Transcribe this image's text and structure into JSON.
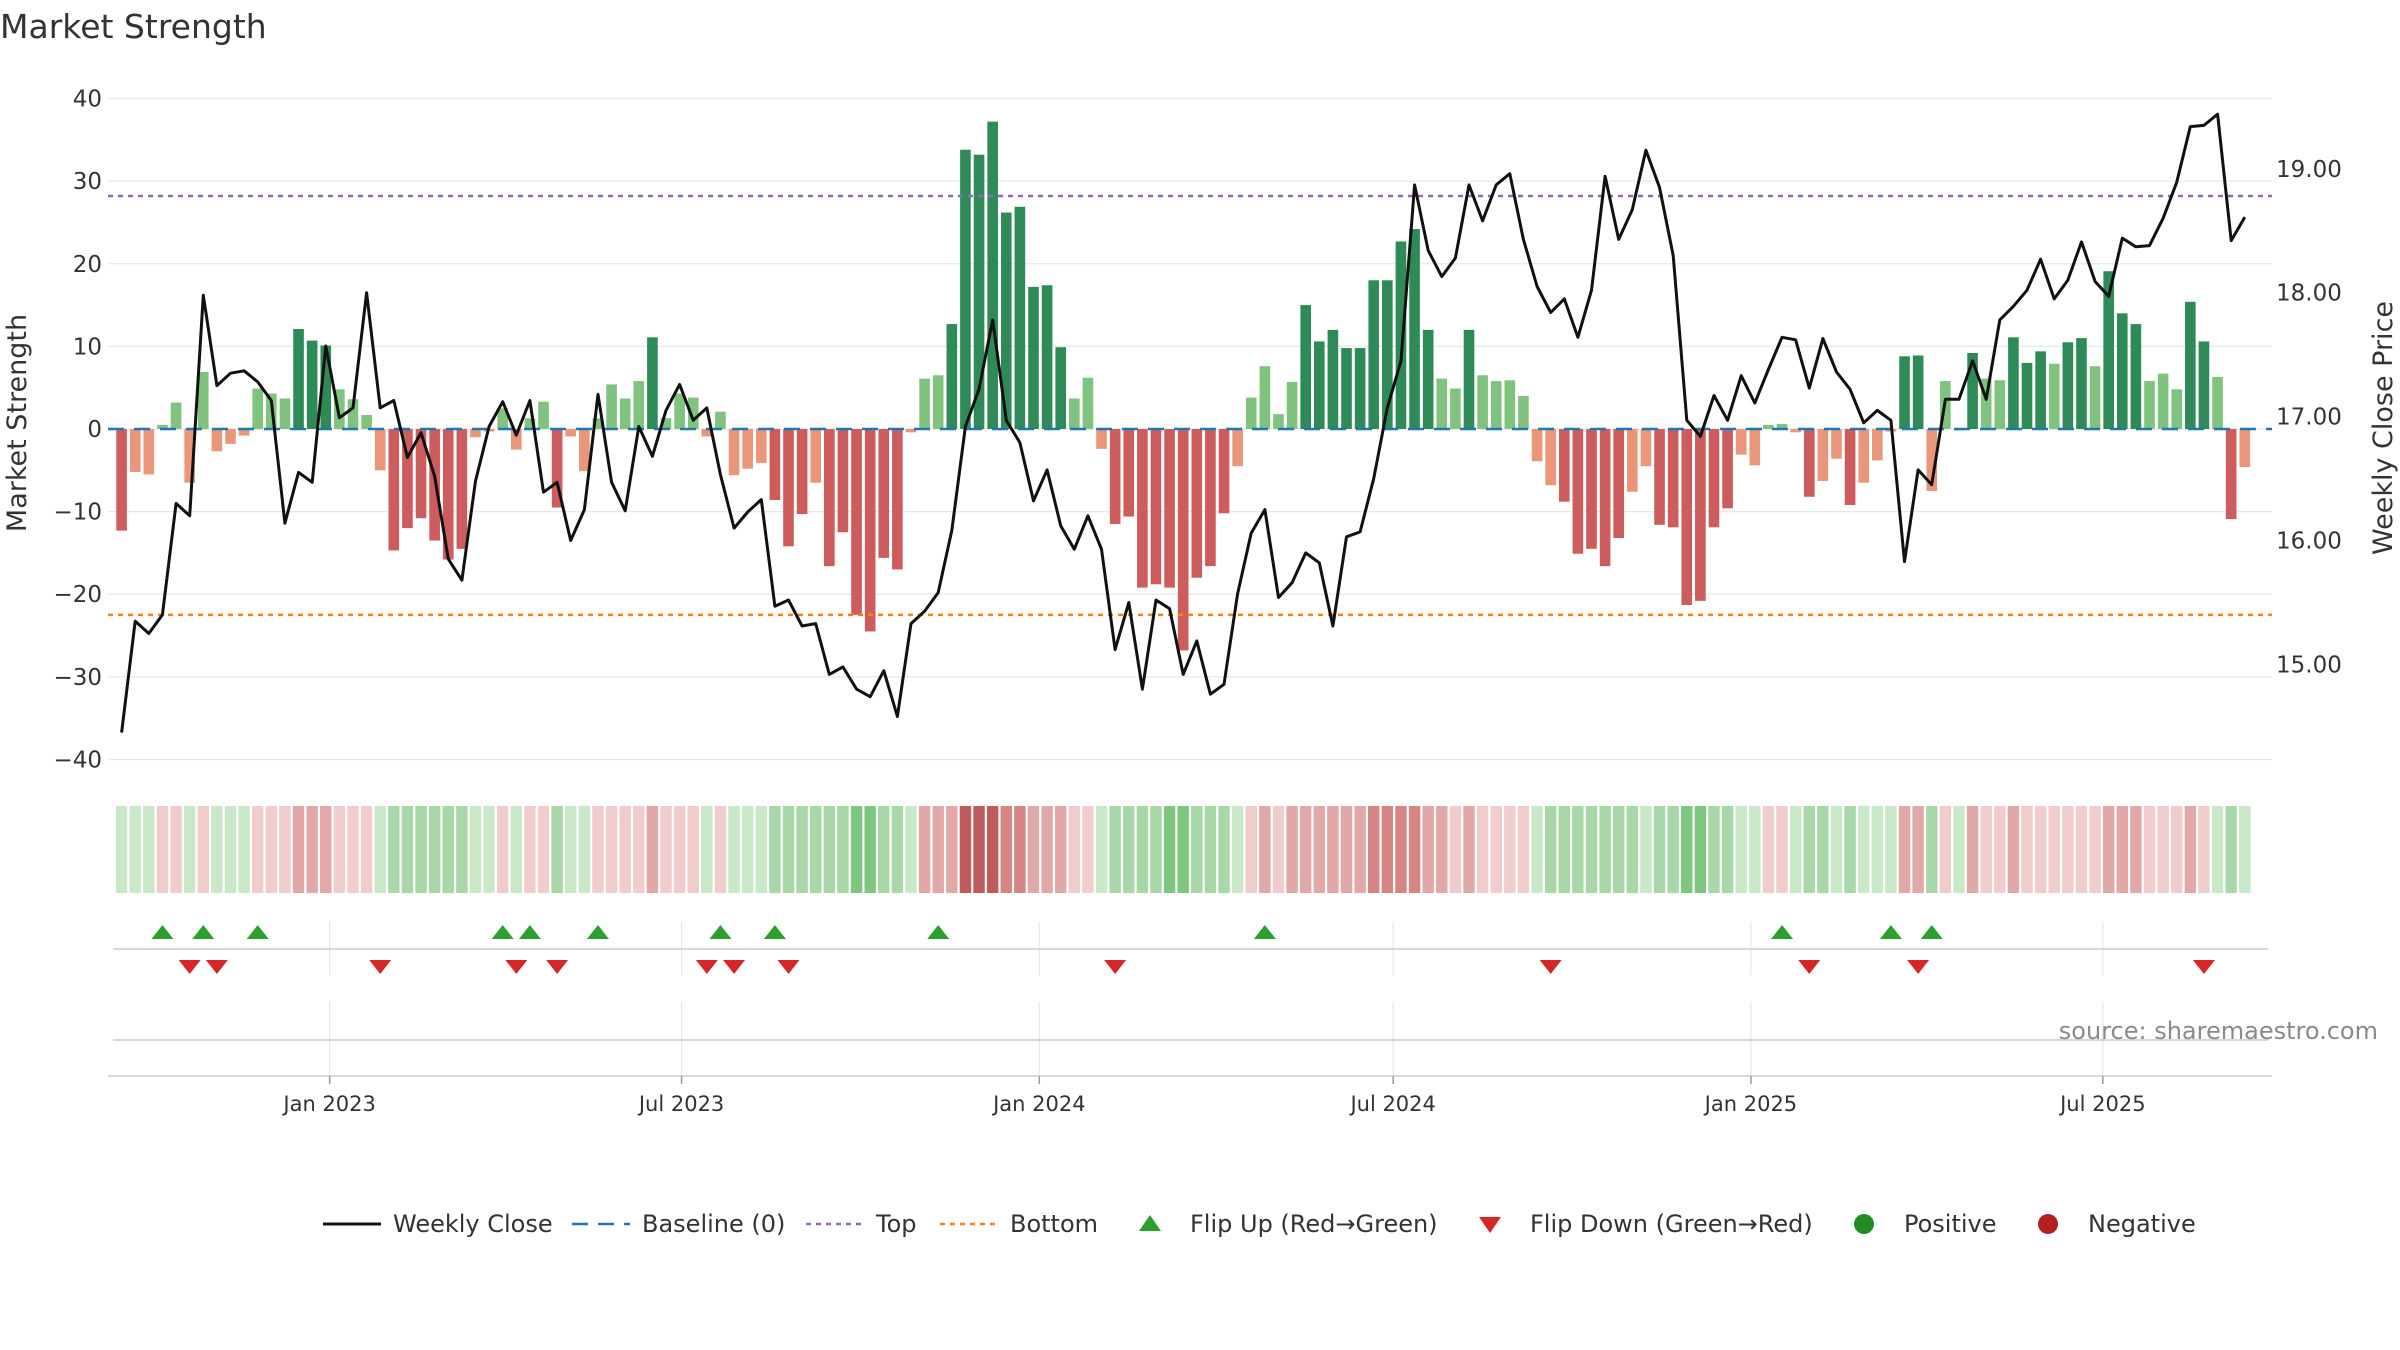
{
  "chart_data": {
    "type": "bar+line",
    "title": "Market Strength",
    "ylabel": "Market Strength",
    "y2label": "Weekly Close Price",
    "ylim": [
      -42,
      42
    ],
    "y2lim": [
      14.1,
      19.7
    ],
    "yticks": [
      40,
      30,
      20,
      10,
      0,
      -10,
      -20,
      -30,
      -40
    ],
    "yticklabels": [
      "40",
      "30",
      "20",
      "10",
      "0",
      "−10",
      "−20",
      "−30",
      "−40"
    ],
    "y2ticks": [
      19.0,
      18.0,
      17.0,
      16.0,
      15.0
    ],
    "y2ticklabels": [
      "19.00",
      "18.00",
      "17.00",
      "16.00",
      "15.00"
    ],
    "top_level": 28.2,
    "bottom_level": -22.5,
    "x_domain": [
      "2022-09-09",
      "2025-09-26"
    ],
    "start_date": "2022-09-16",
    "step_days": 7,
    "xticks": [
      {
        "date": "2023-01-01",
        "label": "Jan 2023"
      },
      {
        "date": "2023-07-01",
        "label": "Jul 2023"
      },
      {
        "date": "2024-01-01",
        "label": "Jan 2024"
      },
      {
        "date": "2024-07-01",
        "label": "Jul 2024"
      },
      {
        "date": "2025-01-01",
        "label": "Jan 2025"
      },
      {
        "date": "2025-07-01",
        "label": "Jul 2025"
      }
    ],
    "strength": [
      -12.3,
      -5.2,
      -5.5,
      0.5,
      3.2,
      -6.5,
      6.9,
      -2.7,
      -1.8,
      -0.8,
      4.9,
      4.3,
      3.7,
      12.1,
      10.7,
      10.1,
      4.8,
      3.6,
      1.7,
      -5.0,
      -14.7,
      -12.0,
      -10.8,
      -13.5,
      -15.8,
      -14.5,
      -1.0,
      -0.3,
      2.5,
      -2.5,
      1.3,
      3.3,
      -9.5,
      -0.9,
      -5.1,
      1.3,
      5.4,
      3.7,
      5.8,
      11.1,
      1.3,
      4.3,
      3.8,
      -0.9,
      2.1,
      -5.6,
      -4.8,
      -4.1,
      -8.6,
      -14.2,
      -10.3,
      -6.5,
      -16.6,
      -12.5,
      -22.5,
      -24.5,
      -15.6,
      -17.0,
      -0.4,
      6.1,
      6.5,
      12.7,
      33.8,
      33.2,
      37.2,
      26.2,
      26.9,
      17.2,
      17.4,
      9.9,
      3.7,
      6.2,
      -2.4,
      -11.5,
      -10.6,
      -19.2,
      -18.8,
      -19.2,
      -26.8,
      -18.0,
      -16.6,
      -10.2,
      -4.5,
      3.8,
      7.6,
      1.8,
      5.7,
      15.0,
      10.6,
      12.0,
      9.8,
      9.8,
      18.0,
      18.0,
      22.7,
      24.2,
      12.0,
      6.1,
      4.9,
      12.0,
      6.5,
      5.8,
      5.9,
      4.0,
      -3.9,
      -6.8,
      -8.8,
      -15.1,
      -14.5,
      -16.6,
      -13.2,
      -7.6,
      -4.5,
      -11.6,
      -11.9,
      -21.3,
      -20.8,
      -11.9,
      -9.6,
      -3.1,
      -4.4,
      0.5,
      0.6,
      -0.4,
      -8.2,
      -6.3,
      -3.6,
      -9.2,
      -6.5,
      -3.8,
      -0.3,
      8.8,
      8.9,
      -7.5,
      5.8,
      -0.1,
      9.2,
      6.1,
      5.9,
      11.1,
      8.0,
      9.4,
      7.9,
      10.5,
      11.0,
      7.6,
      19.1,
      14.0,
      12.7,
      5.8,
      6.7,
      4.8,
      15.4,
      10.6,
      6.3,
      -10.9,
      -4.6
    ],
    "close": [
      14.45,
      15.35,
      15.25,
      15.4,
      16.3,
      16.2,
      17.98,
      17.25,
      17.35,
      17.37,
      17.28,
      17.13,
      16.14,
      16.55,
      16.47,
      17.57,
      16.99,
      17.07,
      18.0,
      17.07,
      17.13,
      16.67,
      16.87,
      16.52,
      15.85,
      15.68,
      16.48,
      16.92,
      17.12,
      16.85,
      17.13,
      16.39,
      16.47,
      16.0,
      16.25,
      17.18,
      16.47,
      16.24,
      16.92,
      16.68,
      17.05,
      17.26,
      16.97,
      17.07,
      16.53,
      16.1,
      16.23,
      16.33,
      15.47,
      15.52,
      15.31,
      15.33,
      14.92,
      14.98,
      14.8,
      14.74,
      14.95,
      14.58,
      15.33,
      15.43,
      15.58,
      16.08,
      16.92,
      17.22,
      17.78,
      16.97,
      16.79,
      16.32,
      16.57,
      16.12,
      15.93,
      16.2,
      15.93,
      15.12,
      15.5,
      14.8,
      15.52,
      15.45,
      14.92,
      15.19,
      14.76,
      14.84,
      15.57,
      16.06,
      16.25,
      15.54,
      15.66,
      15.9,
      15.82,
      15.31,
      16.03,
      16.07,
      16.5,
      17.07,
      17.45,
      18.87,
      18.34,
      18.13,
      18.28,
      18.87,
      18.58,
      18.87,
      18.96,
      18.43,
      18.05,
      17.84,
      17.95,
      17.64,
      18.02,
      18.94,
      18.43,
      18.67,
      19.15,
      18.85,
      18.3,
      16.97,
      16.84,
      17.17,
      16.97,
      17.33,
      17.11,
      17.38,
      17.64,
      17.62,
      17.23,
      17.63,
      17.36,
      17.22,
      16.95,
      17.05,
      16.97,
      15.83,
      16.57,
      16.45,
      17.14,
      17.14,
      17.45,
      17.14,
      17.78,
      17.89,
      18.02,
      18.27,
      17.95,
      18.1,
      18.41,
      18.09,
      17.97,
      18.44,
      18.37,
      18.38,
      18.6,
      18.89,
      19.34,
      19.35,
      19.44,
      18.42,
      18.61
    ],
    "regime_shading": [
      1,
      1,
      1,
      -1,
      -1,
      1,
      -1,
      1,
      1,
      1,
      -1,
      -1,
      -1,
      -2,
      -2,
      -2,
      -1,
      -1,
      -1,
      1,
      2,
      2,
      2,
      2,
      2,
      2,
      1,
      1,
      -1,
      1,
      -1,
      -1,
      2,
      1,
      1,
      -1,
      -1,
      -1,
      -1,
      -2,
      -1,
      -1,
      -1,
      1,
      -1,
      1,
      1,
      1,
      2,
      2,
      2,
      2,
      2,
      2,
      3,
      3,
      2,
      2,
      1,
      -2,
      -2,
      -2,
      -4,
      -4,
      -4,
      -3,
      -3,
      -2,
      -2,
      -2,
      -1,
      -1,
      1,
      2,
      2,
      2,
      2,
      3,
      3,
      2,
      2,
      2,
      1,
      -1,
      -2,
      -1,
      -2,
      -2,
      -2,
      -2,
      -2,
      -2,
      -3,
      -3,
      -3,
      -3,
      -2,
      -2,
      -1,
      -2,
      -1,
      -1,
      -1,
      -1,
      1,
      2,
      2,
      2,
      2,
      2,
      2,
      2,
      1,
      2,
      2,
      3,
      3,
      2,
      2,
      1,
      1,
      -1,
      -1,
      1,
      2,
      2,
      1,
      2,
      1,
      1,
      1,
      -2,
      -2,
      2,
      -1,
      1,
      -2,
      -1,
      -1,
      -2,
      -1,
      -1,
      -1,
      -1,
      -1,
      -1,
      -2,
      -2,
      -2,
      -1,
      -1,
      -1,
      -2,
      -1,
      1,
      2,
      1
    ],
    "flip_up_weeks": [
      3,
      6,
      10,
      28,
      30,
      35,
      44,
      48,
      60,
      84,
      122,
      130,
      133
    ],
    "flip_down_weeks": [
      5,
      7,
      19,
      29,
      32,
      43,
      45,
      49,
      73,
      105,
      124,
      132,
      153
    ],
    "colors": {
      "pos_strong": "#2e8b57",
      "pos_weak": "#7fc37f",
      "neg_strong": "#cd5c5c",
      "neg_weak": "#e9967a",
      "line": "#111111",
      "baseline": "#1f77b4",
      "top": "#9467bd",
      "bottom": "#ff7f0e",
      "flip_up": "#2ca02c",
      "flip_down": "#d62728",
      "positive": "#228b22",
      "negative": "#b22222"
    },
    "legend": {
      "position": "bottom",
      "entries": [
        {
          "key": "line",
          "label": "Weekly Close"
        },
        {
          "key": "baseline",
          "label": "Baseline (0)"
        },
        {
          "key": "top",
          "label": "Top"
        },
        {
          "key": "bottom",
          "label": "Bottom"
        },
        {
          "key": "flip_up",
          "label": "Flip Up (Red→Green)"
        },
        {
          "key": "flip_down",
          "label": "Flip Down (Green→Red)"
        },
        {
          "key": "positive",
          "label": "Positive"
        },
        {
          "key": "negative",
          "label": "Negative"
        }
      ]
    }
  },
  "source": "source: sharemaestro.com"
}
